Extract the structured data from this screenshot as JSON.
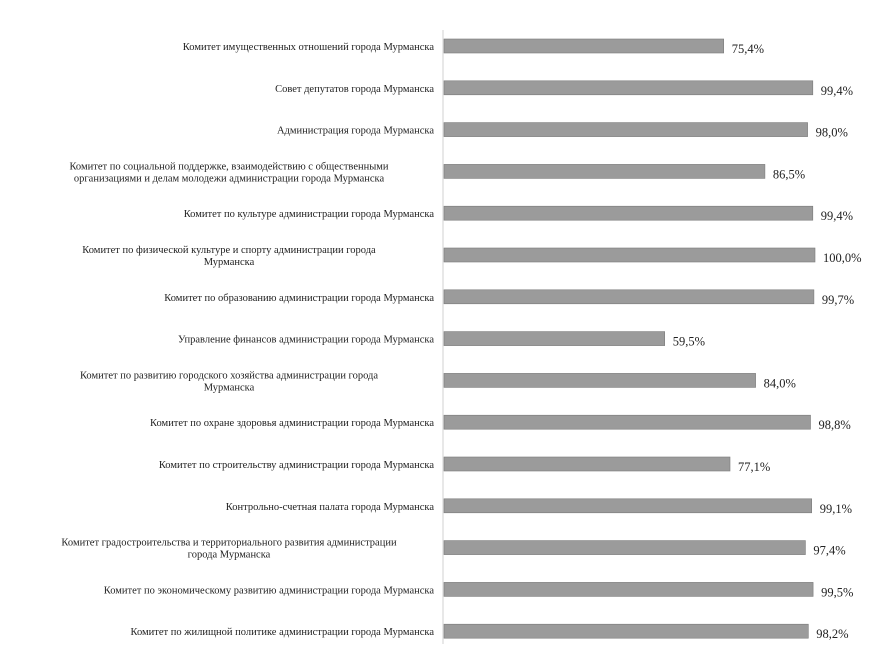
{
  "chart_data": {
    "type": "bar",
    "orientation": "horizontal",
    "title": "",
    "xlabel": "",
    "ylabel": "",
    "xlim": [
      0,
      100
    ],
    "grid": false,
    "legend": "none",
    "categories": [
      "Комитет имущественных отношений города Мурманска",
      "Совет депутатов города Мурманска",
      "Администрация города Мурманска",
      "Комитет по социальной поддержке, взаимодействию с общественными организациями и делам молодежи администрации города Мурманска",
      "Комитет по культуре администрации города Мурманска",
      "Комитет по физической культуре и спорту администрации города Мурманска",
      "Комитет по образованию администрации города Мурманска",
      "Управление финансов администрации города Мурманска",
      "Комитет по развитию городского хозяйства администрации города Мурманска",
      "Комитет по охране здоровья администрации города Мурманска",
      "Комитет по строительству администрации города Мурманска",
      "Контрольно-счетная палата города Мурманска",
      "Комитет градостроительства и территориального развития администрации города Мурманска",
      "Комитет по экономическому развитию администрации города Мурманска",
      "Комитет по жилищной политике администрации города Мурманска"
    ],
    "category_lines": [
      [
        "Комитет имущественных отношений города Мурманска"
      ],
      [
        "Совет депутатов города Мурманска"
      ],
      [
        "Администрация города Мурманска"
      ],
      [
        "Комитет по социальной поддержке, взаимодействию с общественными",
        "организациями и делам молодежи администрации города Мурманска"
      ],
      [
        "Комитет по культуре администрации города Мурманска"
      ],
      [
        "Комитет по физической культуре и спорту администрации города",
        "Мурманска"
      ],
      [
        "Комитет по образованию администрации города Мурманска"
      ],
      [
        "Управление финансов администрации города Мурманска"
      ],
      [
        "Комитет по развитию городского хозяйства администрации города",
        "Мурманска"
      ],
      [
        "Комитет по охране здоровья администрации города Мурманска"
      ],
      [
        "Комитет по строительству администрации города Мурманска"
      ],
      [
        "Контрольно-счетная палата города Мурманска"
      ],
      [
        "Комитет градостроительства и территориального развития администрации",
        "города Мурманска"
      ],
      [
        "Комитет по экономическому развитию администрации города Мурманска"
      ],
      [
        "Комитет по жилищной политике администрации города Мурманска"
      ]
    ],
    "values": [
      75.4,
      99.4,
      98.0,
      86.5,
      99.4,
      100.0,
      99.7,
      59.5,
      84.0,
      98.8,
      77.1,
      99.1,
      97.4,
      99.5,
      98.2
    ],
    "data_labels": [
      "75,4%",
      "99,4%",
      "98,0%",
      "86,5%",
      "99,4%",
      "100,0%",
      "99,7%",
      "59,5%",
      "84,0%",
      "98,8%",
      "77,1%",
      "99,1%",
      "97,4%",
      "99,5%",
      "98,2%"
    ],
    "colors": {
      "bar": "#9b9b9b",
      "bar_stroke": "#7a7a7a",
      "axis": "#d0d0d0",
      "text": "#222222"
    }
  }
}
